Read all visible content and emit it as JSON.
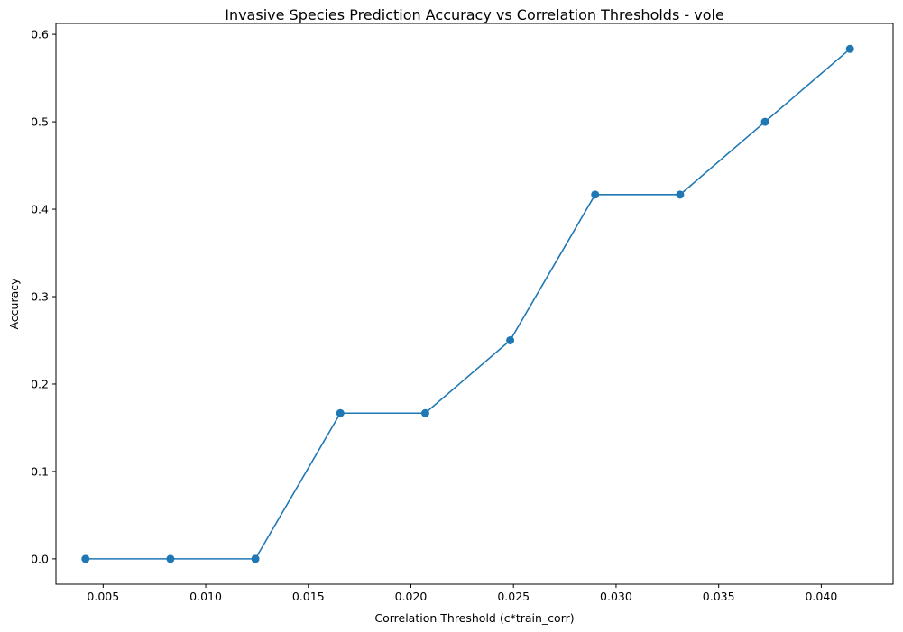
{
  "chart_data": {
    "type": "line",
    "title": "Invasive Species Prediction Accuracy vs Correlation Thresholds - vole",
    "xlabel": "Correlation Threshold (c*train_corr)",
    "ylabel": "Accuracy",
    "xlim": [
      0.0027,
      0.0435
    ],
    "ylim": [
      -0.029,
      0.6125
    ],
    "xticks": [
      0.005,
      0.01,
      0.015,
      0.02,
      0.025,
      0.03,
      0.035,
      0.04
    ],
    "xtick_labels": [
      "0.005",
      "0.010",
      "0.015",
      "0.020",
      "0.025",
      "0.030",
      "0.035",
      "0.040"
    ],
    "yticks": [
      0.0,
      0.1,
      0.2,
      0.3,
      0.4,
      0.5,
      0.6
    ],
    "ytick_labels": [
      "0.0",
      "0.1",
      "0.2",
      "0.3",
      "0.4",
      "0.5",
      "0.6"
    ],
    "grid": false,
    "legend": "none",
    "series": [
      {
        "color": "#1f77b4",
        "marker": "circle",
        "x": [
          0.00414,
          0.00828,
          0.01242,
          0.01656,
          0.0207,
          0.02484,
          0.02898,
          0.03312,
          0.03726,
          0.0414
        ],
        "y": [
          0.0,
          0.0,
          0.0,
          0.1667,
          0.1667,
          0.25,
          0.4167,
          0.4167,
          0.5,
          0.5833
        ]
      }
    ]
  }
}
